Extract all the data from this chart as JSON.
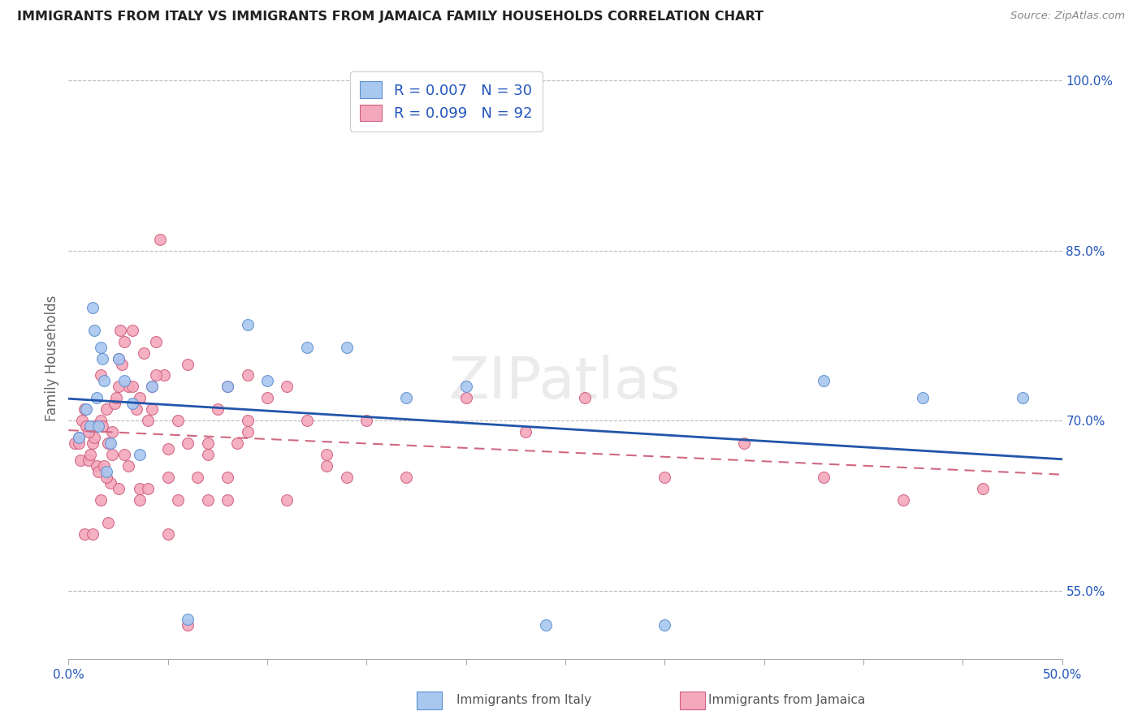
{
  "title": "IMMIGRANTS FROM ITALY VS IMMIGRANTS FROM JAMAICA FAMILY HOUSEHOLDS CORRELATION CHART",
  "source": "Source: ZipAtlas.com",
  "ylabel": "Family Households",
  "ytick_vals": [
    1.0,
    0.85,
    0.7,
    0.55
  ],
  "ytick_labels": [
    "100.0%",
    "85.0%",
    "70.0%",
    "55.0%"
  ],
  "xmin": 0.0,
  "xmax": 0.5,
  "ymin": 0.49,
  "ymax": 1.02,
  "italy_R": 0.007,
  "italy_N": 30,
  "jamaica_R": 0.099,
  "jamaica_N": 92,
  "italy_color": "#A8C8F0",
  "jamaica_color": "#F4A8BC",
  "italy_edge_color": "#6090D0",
  "jamaica_edge_color": "#D06080",
  "italy_line_color": "#2255AA",
  "jamaica_line_color": "#D06880",
  "legend_text_color": "#2255BB",
  "title_color": "#222222",
  "source_color": "#888888",
  "background_color": "#ffffff",
  "grid_color": "#bbbbbb",
  "italy_x": [
    0.005,
    0.009,
    0.011,
    0.012,
    0.013,
    0.014,
    0.015,
    0.016,
    0.017,
    0.018,
    0.019,
    0.021,
    0.025,
    0.028,
    0.032,
    0.036,
    0.042,
    0.06,
    0.08,
    0.09,
    0.1,
    0.12,
    0.14,
    0.17,
    0.2,
    0.24,
    0.3,
    0.38,
    0.43,
    0.48
  ],
  "italy_y": [
    0.685,
    0.71,
    0.695,
    0.8,
    0.78,
    0.72,
    0.695,
    0.765,
    0.755,
    0.735,
    0.655,
    0.68,
    0.755,
    0.735,
    0.715,
    0.67,
    0.73,
    0.525,
    0.73,
    0.785,
    0.735,
    0.765,
    0.765,
    0.72,
    0.73,
    0.52,
    0.52,
    0.735,
    0.72,
    0.72
  ],
  "jamaica_x": [
    0.003,
    0.005,
    0.006,
    0.007,
    0.008,
    0.009,
    0.01,
    0.011,
    0.012,
    0.013,
    0.014,
    0.015,
    0.016,
    0.017,
    0.018,
    0.019,
    0.02,
    0.021,
    0.022,
    0.023,
    0.024,
    0.025,
    0.026,
    0.027,
    0.028,
    0.03,
    0.032,
    0.034,
    0.036,
    0.038,
    0.04,
    0.042,
    0.044,
    0.046,
    0.048,
    0.05,
    0.055,
    0.06,
    0.065,
    0.07,
    0.075,
    0.08,
    0.085,
    0.09,
    0.01,
    0.013,
    0.016,
    0.019,
    0.022,
    0.025,
    0.028,
    0.032,
    0.036,
    0.04,
    0.044,
    0.05,
    0.055,
    0.06,
    0.07,
    0.08,
    0.09,
    0.1,
    0.11,
    0.12,
    0.13,
    0.14,
    0.008,
    0.012,
    0.016,
    0.02,
    0.025,
    0.03,
    0.036,
    0.042,
    0.05,
    0.06,
    0.07,
    0.08,
    0.09,
    0.11,
    0.13,
    0.15,
    0.17,
    0.2,
    0.23,
    0.26,
    0.3,
    0.34,
    0.38,
    0.42,
    0.46,
    0.005
  ],
  "jamaica_y": [
    0.68,
    0.685,
    0.665,
    0.7,
    0.71,
    0.695,
    0.665,
    0.67,
    0.68,
    0.685,
    0.66,
    0.655,
    0.7,
    0.695,
    0.66,
    0.71,
    0.68,
    0.645,
    0.67,
    0.715,
    0.72,
    0.755,
    0.78,
    0.75,
    0.77,
    0.73,
    0.78,
    0.71,
    0.64,
    0.76,
    0.64,
    0.73,
    0.77,
    0.86,
    0.74,
    0.675,
    0.7,
    0.75,
    0.65,
    0.68,
    0.71,
    0.63,
    0.68,
    0.74,
    0.69,
    0.695,
    0.74,
    0.65,
    0.69,
    0.73,
    0.67,
    0.73,
    0.72,
    0.7,
    0.74,
    0.65,
    0.63,
    0.68,
    0.67,
    0.73,
    0.69,
    0.72,
    0.73,
    0.7,
    0.66,
    0.65,
    0.6,
    0.6,
    0.63,
    0.61,
    0.64,
    0.66,
    0.63,
    0.71,
    0.6,
    0.52,
    0.63,
    0.65,
    0.7,
    0.63,
    0.67,
    0.7,
    0.65,
    0.72,
    0.69,
    0.72,
    0.65,
    0.68,
    0.65,
    0.63,
    0.64,
    0.68
  ],
  "watermark": "ZIPatlas",
  "xtick_positions": [
    0.0,
    0.05,
    0.1,
    0.15,
    0.2,
    0.25,
    0.3,
    0.35,
    0.4,
    0.45,
    0.5
  ]
}
